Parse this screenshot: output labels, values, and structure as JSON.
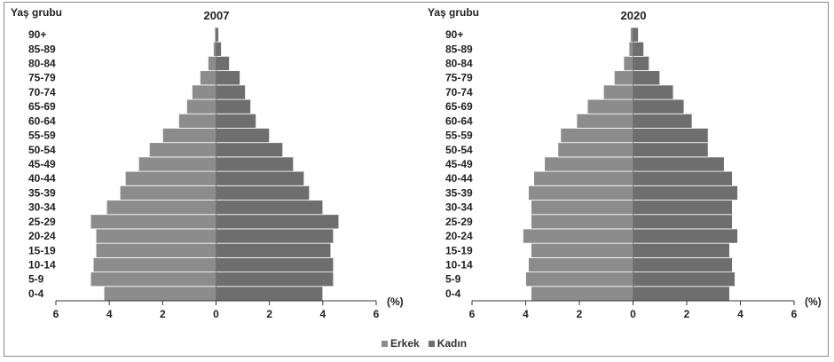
{
  "legend": {
    "male": "Erkek",
    "female": "Kadın"
  },
  "colors": {
    "male": "#8c8c8c",
    "female": "#6e6e6e",
    "bar_edge": "#ffffff",
    "axis": "#333333"
  },
  "chart_data": [
    {
      "type": "bar",
      "title": "2007",
      "ylabel": "Yaş grubu",
      "xunit": "(%)",
      "xticks": [
        "6",
        "4",
        "2",
        "0",
        "2",
        "4",
        "6"
      ],
      "xlim": [
        -6,
        6
      ],
      "categories": [
        "0-4",
        "5-9",
        "10-14",
        "15-19",
        "20-24",
        "25-29",
        "30-34",
        "35-39",
        "40-44",
        "45-49",
        "50-54",
        "55-59",
        "60-64",
        "65-69",
        "70-74",
        "75-79",
        "80-84",
        "85-89",
        "90+"
      ],
      "series": [
        {
          "name": "Erkek",
          "values": [
            4.2,
            4.7,
            4.6,
            4.5,
            4.5,
            4.7,
            4.1,
            3.6,
            3.4,
            2.9,
            2.5,
            2.0,
            1.4,
            1.1,
            0.9,
            0.6,
            0.3,
            0.1,
            0.05
          ]
        },
        {
          "name": "Kadın",
          "values": [
            4.0,
            4.4,
            4.4,
            4.3,
            4.4,
            4.6,
            4.0,
            3.5,
            3.3,
            2.9,
            2.5,
            2.0,
            1.5,
            1.3,
            1.1,
            0.9,
            0.5,
            0.2,
            0.1
          ]
        }
      ]
    },
    {
      "type": "bar",
      "title": "2020",
      "ylabel": "Yaş grubu",
      "xunit": "(%)",
      "xticks": [
        "6",
        "4",
        "2",
        "0",
        "2",
        "4",
        "6"
      ],
      "xlim": [
        -6,
        6
      ],
      "categories": [
        "0-4",
        "5-9",
        "10-14",
        "15-19",
        "20-24",
        "25-29",
        "30-34",
        "35-39",
        "40-44",
        "45-49",
        "50-54",
        "55-59",
        "60-64",
        "65-69",
        "70-74",
        "75-79",
        "80-84",
        "85-89",
        "90+"
      ],
      "series": [
        {
          "name": "Erkek",
          "values": [
            3.8,
            4.0,
            3.9,
            3.8,
            4.1,
            3.8,
            3.8,
            3.9,
            3.7,
            3.3,
            2.8,
            2.7,
            2.1,
            1.7,
            1.1,
            0.7,
            0.35,
            0.15,
            0.1
          ]
        },
        {
          "name": "Kadın",
          "values": [
            3.6,
            3.8,
            3.7,
            3.6,
            3.9,
            3.7,
            3.7,
            3.9,
            3.7,
            3.4,
            2.8,
            2.8,
            2.2,
            1.9,
            1.5,
            1.0,
            0.6,
            0.4,
            0.2
          ]
        }
      ]
    }
  ]
}
